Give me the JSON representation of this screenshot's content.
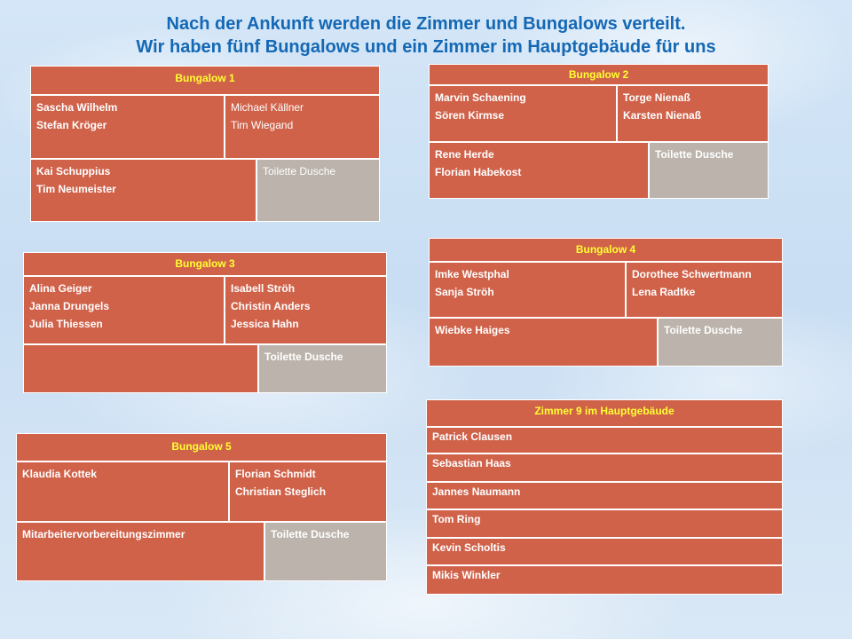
{
  "title": {
    "line1": "Nach der Ankunft werden die Zimmer und Bungalows verteilt.",
    "line2": "Wir haben fünf Bungalows und ein Zimmer im Hauptgebäude für uns"
  },
  "bungalow1": {
    "heading": "Bungalow 1",
    "room_a": [
      "Sascha Wilhelm",
      "Stefan Kröger"
    ],
    "room_b": [
      "Michael Källner",
      "Tim Wiegand"
    ],
    "room_c": [
      "Kai Schuppius",
      "Tim Neumeister"
    ],
    "bath": "Toilette Dusche"
  },
  "bungalow2": {
    "heading": "Bungalow 2",
    "room_a": [
      "Marvin Schaening",
      "Sören Kirmse"
    ],
    "room_b": [
      "Torge Nienaß",
      "Karsten Nienaß"
    ],
    "room_c": [
      "Rene Herde",
      "Florian Habekost"
    ],
    "bath": "Toilette Dusche"
  },
  "bungalow3": {
    "heading": "Bungalow 3",
    "room_a": [
      "Alina Geiger",
      "Janna Drungels",
      "Julia Thiessen"
    ],
    "room_b": [
      "Isabell Ströh",
      "Christin Anders",
      "Jessica Hahn"
    ],
    "bath": "Toilette Dusche"
  },
  "bungalow4": {
    "heading": "Bungalow 4",
    "room_a": [
      "Imke Westphal",
      "Sanja Ströh"
    ],
    "room_b": [
      "Dorothee Schwertmann",
      "Lena Radtke"
    ],
    "room_c": [
      "Wiebke Haiges"
    ],
    "bath": "Toilette Dusche"
  },
  "bungalow5": {
    "heading": "Bungalow 5",
    "room_a": [
      "Klaudia Kottek"
    ],
    "room_b": [
      "Florian Schmidt",
      "Christian Steglich"
    ],
    "room_c": [
      "Mitarbeitervorbereitungszimmer"
    ],
    "bath": "Toilette Dusche"
  },
  "zimmer9": {
    "heading": "Zimmer 9 im Hauptgebäude",
    "names": [
      "Patrick Clausen",
      "Sebastian Haas",
      "Jannes Naumann",
      "Tom Ring",
      "Kevin Scholtis",
      "Mikis Winkler"
    ]
  }
}
